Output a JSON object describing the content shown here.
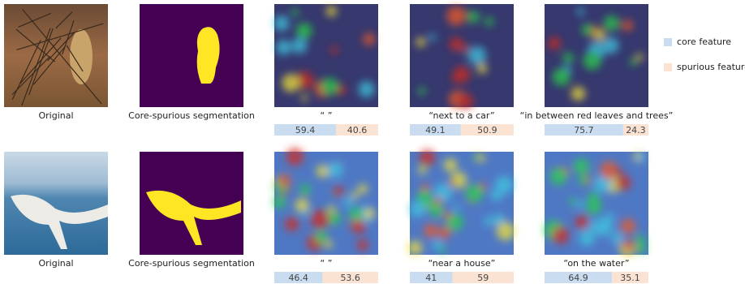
{
  "legend": {
    "core": "core feature",
    "spurious": "spurious feature"
  },
  "rows": [
    {
      "original": "Original",
      "segmentation": "Core-spurious segmentation",
      "panels": [
        {
          "caption": "“ ”",
          "core": 59.4,
          "spurious": 40.6
        },
        {
          "caption": "“next to a car”",
          "core": 49.1,
          "spurious": 50.9
        },
        {
          "caption": "“in between red leaves and trees”",
          "core": 75.7,
          "spurious": 24.3
        }
      ]
    },
    {
      "original": "Original",
      "segmentation": "Core-spurious segmentation",
      "panels": [
        {
          "caption": "“ ”",
          "core": 46.4,
          "spurious": 53.6
        },
        {
          "caption": "“near a house”",
          "core": 41,
          "spurious": 59
        },
        {
          "caption": "“on the water”",
          "core": 64.9,
          "spurious": 35.1
        }
      ]
    }
  ]
}
